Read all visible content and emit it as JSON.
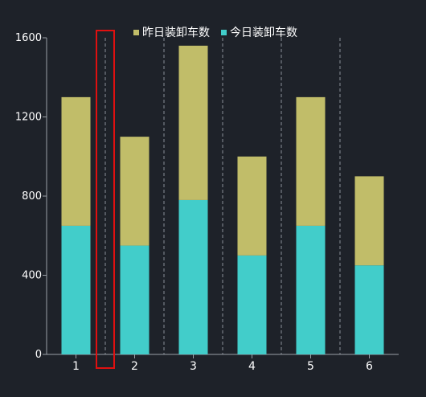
{
  "chart_data": {
    "type": "bar",
    "stacked": true,
    "categories": [
      "1",
      "2",
      "3",
      "4",
      "5",
      "6"
    ],
    "series": [
      {
        "name": "今日装卸车数",
        "color": "#42cdca",
        "values": [
          650,
          550,
          780,
          500,
          650,
          450
        ]
      },
      {
        "name": "昨日装卸车数",
        "color": "#c1bd69",
        "values": [
          650,
          550,
          780,
          500,
          650,
          450
        ]
      }
    ],
    "ylim": [
      0,
      1600
    ],
    "yticks": [
      0,
      400,
      800,
      1200,
      1600
    ],
    "legend_order": [
      "昨日装卸车数",
      "今日装卸车数"
    ],
    "legend_position": "top-center",
    "grid": "dashed vertical separators between categories",
    "highlight_category_gap": "between 1 and 2",
    "highlight_color": "#e01010"
  }
}
